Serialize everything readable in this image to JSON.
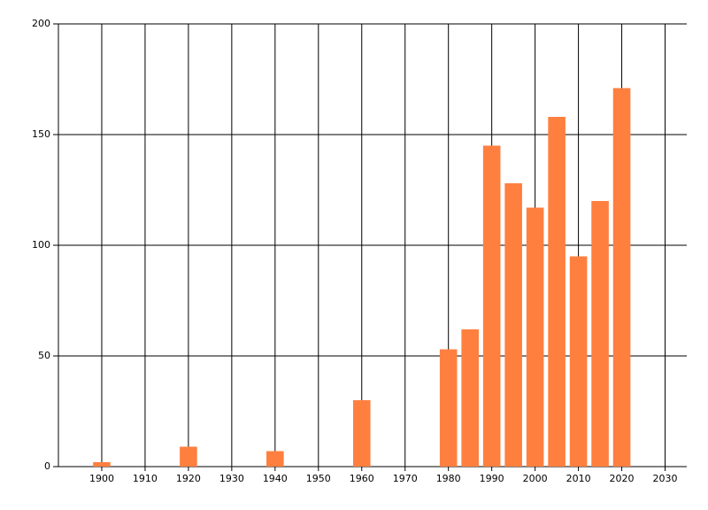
{
  "chart_data": {
    "type": "bar",
    "x": [
      1900,
      1920,
      1940,
      1960,
      1980,
      1985,
      1990,
      1995,
      2000,
      2005,
      2010,
      2015,
      2020
    ],
    "values": [
      2,
      9,
      7,
      30,
      53,
      62,
      145,
      128,
      117,
      158,
      95,
      120,
      171
    ],
    "color": "#ff7f3f",
    "xlim": [
      1890,
      2035
    ],
    "xticks": [
      1900,
      1910,
      1920,
      1930,
      1940,
      1950,
      1960,
      1970,
      1980,
      1990,
      2000,
      2010,
      2020,
      2030
    ],
    "ylim": [
      0,
      200
    ],
    "yticks": [
      0,
      50,
      100,
      150,
      200
    ],
    "grid": true
  }
}
